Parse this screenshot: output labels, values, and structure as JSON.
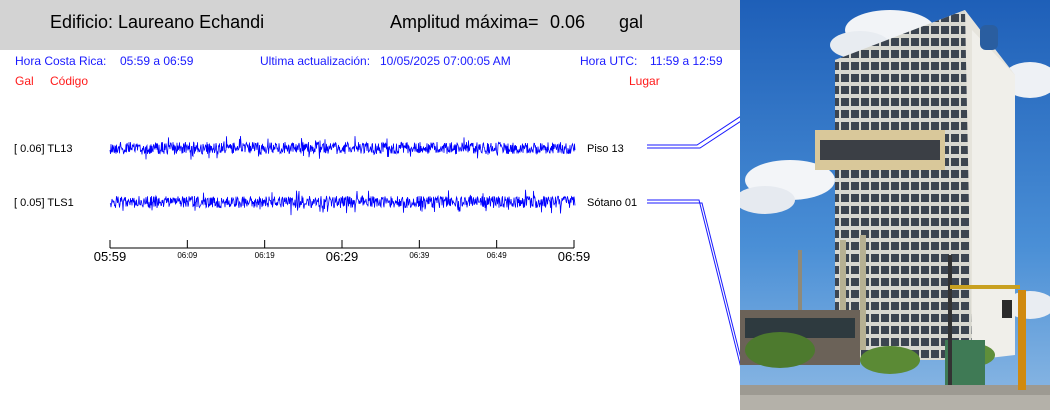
{
  "header": {
    "building": "Edificio: Laureano Echandi",
    "amp_label": "Amplitud máxima=",
    "amp_value": "0.06",
    "amp_unit": "gal"
  },
  "info": {
    "cr_label": "Hora Costa Rica:",
    "cr_value": "05:59 a 06:59",
    "update_label": "Ultima actualización:",
    "update_value": "10/05/2025 07:00:05 AM",
    "utc_label": "Hora UTC:",
    "utc_value": "11:59 a 12:59"
  },
  "columns": {
    "gal": "Gal",
    "codigo": "Código",
    "lugar": "Lugar"
  },
  "channels": [
    {
      "amp": "[   0.06] TL13",
      "place": "Piso 13"
    },
    {
      "amp": "[   0.05] TLS1",
      "place": "Sótano 01"
    }
  ],
  "time_axis": {
    "major": [
      "05:59",
      "06:29",
      "06:59"
    ],
    "minor": [
      "06:09",
      "06:19",
      "06:39",
      "06:49"
    ]
  },
  "colors": {
    "trace": "#0000ff",
    "header_bg": "#d3d3d3",
    "info_text": "#1a1aff",
    "red_text": "#ff1a1a"
  }
}
